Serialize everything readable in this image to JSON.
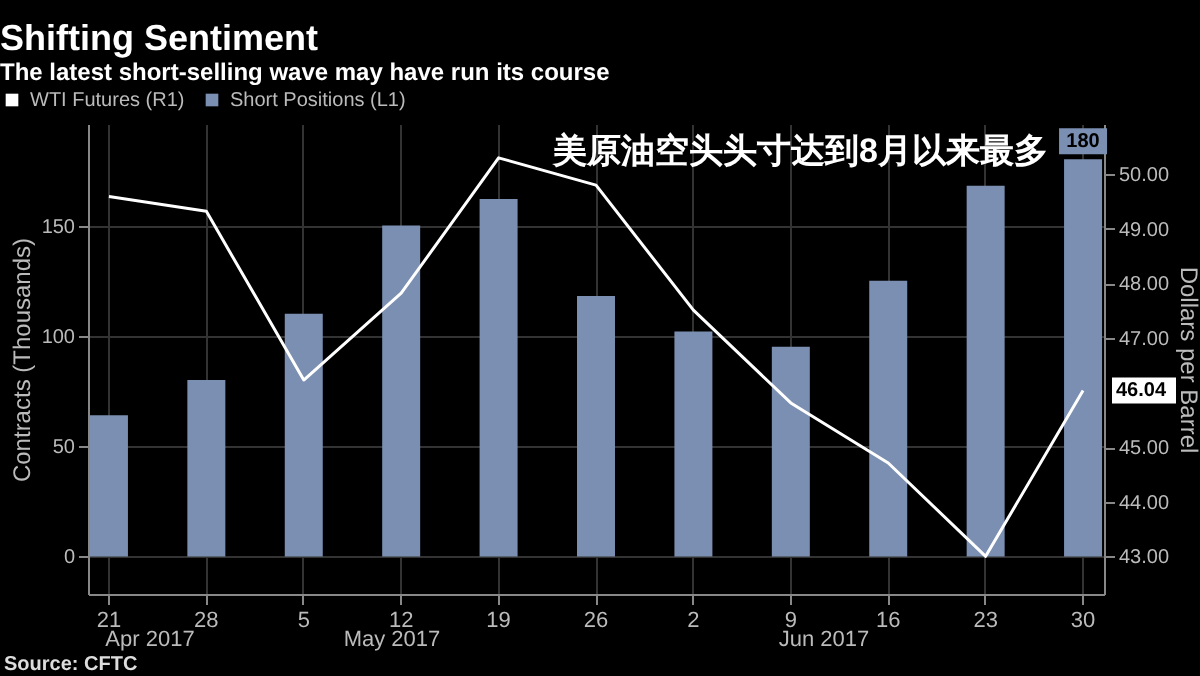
{
  "chart_data": {
    "type": "bar",
    "title": "Shifting Sentiment",
    "subtitle": "The latest short-selling wave may have run its course",
    "categories": [
      "21",
      "28",
      "5",
      "12",
      "19",
      "26",
      "2",
      "9",
      "16",
      "23",
      "30"
    ],
    "series": [
      {
        "name": "WTI Futures (R1)",
        "type": "line",
        "axis": "y2",
        "color": "#ffffff",
        "values": [
          49.59,
          49.32,
          46.23,
          47.82,
          50.3,
          49.8,
          47.51,
          45.81,
          44.71,
          43.0,
          46.04
        ],
        "value_labels": [
          null,
          null,
          null,
          null,
          null,
          null,
          null,
          null,
          null,
          null,
          "46.04"
        ]
      },
      {
        "name": "Short Positions (L1)",
        "color": "#7b8fb2",
        "values": [
          64,
          80,
          110,
          150,
          162,
          118,
          102,
          95,
          125,
          168,
          180
        ],
        "value_labels": [
          null,
          null,
          null,
          null,
          null,
          null,
          null,
          null,
          null,
          null,
          "180"
        ]
      }
    ],
    "ylabel": "Contracts (Thousands)",
    "y2label": "Dollars per Barrel",
    "ylim": [
      -17,
      196
    ],
    "yticks": [
      0,
      50,
      100,
      150
    ],
    "y2lim": [
      42.31,
      50.92
    ],
    "y2ticks": [
      {
        "value": 43,
        "label": "43.00"
      },
      {
        "value": 44,
        "label": "44.00"
      },
      {
        "value": 45,
        "label": "45.00"
      },
      {
        "value": 47,
        "label": "47.00"
      },
      {
        "value": 48,
        "label": "48.00"
      },
      {
        "value": 49,
        "label": "49.00"
      },
      {
        "value": 50,
        "label": "50.00"
      }
    ],
    "grid": true,
    "legend": "top left",
    "annotations": [
      "美原油空头头寸达到8月以来最多",
      "Apr 2017",
      "May 2017",
      "Jun 2017",
      "Source: CFTC"
    ]
  }
}
